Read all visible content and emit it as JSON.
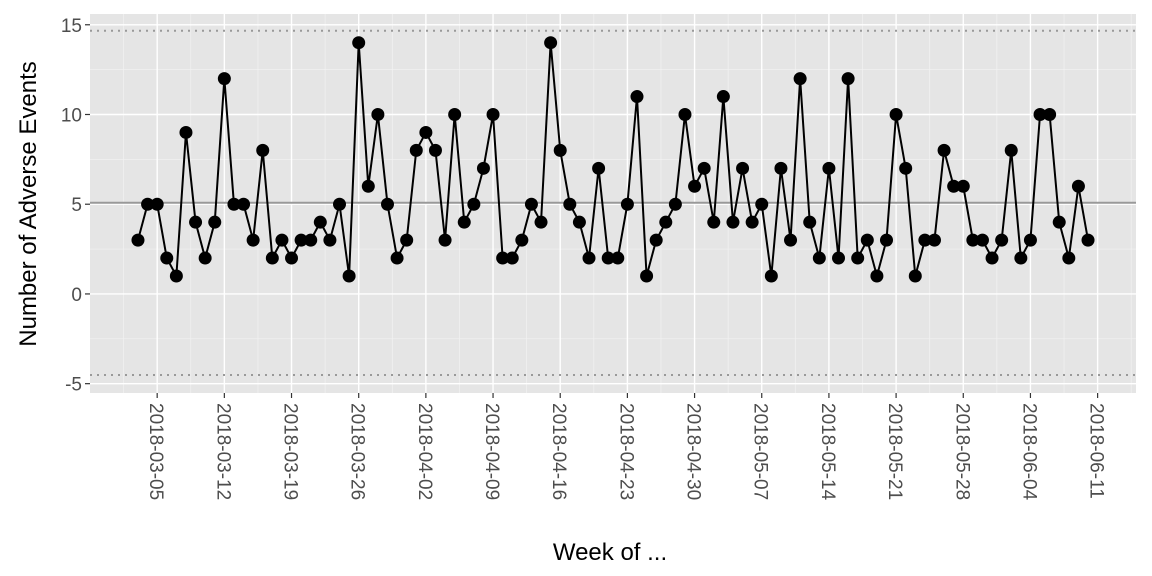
{
  "chart_data": {
    "type": "line",
    "x_label": "Week of ...",
    "y_label": "Number of Adverse Events",
    "x": [
      "2018-03-03",
      "2018-03-04",
      "2018-03-05",
      "2018-03-06",
      "2018-03-07",
      "2018-03-08",
      "2018-03-09",
      "2018-03-10",
      "2018-03-11",
      "2018-03-12",
      "2018-03-13",
      "2018-03-14",
      "2018-03-15",
      "2018-03-16",
      "2018-03-17",
      "2018-03-18",
      "2018-03-19",
      "2018-03-20",
      "2018-03-21",
      "2018-03-22",
      "2018-03-23",
      "2018-03-24",
      "2018-03-25",
      "2018-03-26",
      "2018-03-27",
      "2018-03-28",
      "2018-03-29",
      "2018-03-30",
      "2018-03-31",
      "2018-04-01",
      "2018-04-02",
      "2018-04-03",
      "2018-04-04",
      "2018-04-05",
      "2018-04-06",
      "2018-04-07",
      "2018-04-08",
      "2018-04-09",
      "2018-04-10",
      "2018-04-11",
      "2018-04-12",
      "2018-04-13",
      "2018-04-14",
      "2018-04-15",
      "2018-04-16",
      "2018-04-17",
      "2018-04-18",
      "2018-04-19",
      "2018-04-20",
      "2018-04-21",
      "2018-04-22",
      "2018-04-23",
      "2018-04-24",
      "2018-04-25",
      "2018-04-26",
      "2018-04-27",
      "2018-04-28",
      "2018-04-29",
      "2018-04-30",
      "2018-05-01",
      "2018-05-02",
      "2018-05-03",
      "2018-05-04",
      "2018-05-05",
      "2018-05-06",
      "2018-05-07",
      "2018-05-08",
      "2018-05-09",
      "2018-05-10",
      "2018-05-11",
      "2018-05-12",
      "2018-05-13",
      "2018-05-14",
      "2018-05-15",
      "2018-05-16",
      "2018-05-17",
      "2018-05-18",
      "2018-05-19",
      "2018-05-20",
      "2018-05-21",
      "2018-05-22",
      "2018-05-23",
      "2018-05-24",
      "2018-05-25",
      "2018-05-26",
      "2018-05-27",
      "2018-05-28",
      "2018-05-29",
      "2018-05-30",
      "2018-05-31",
      "2018-06-01",
      "2018-06-02",
      "2018-06-03",
      "2018-06-04",
      "2018-06-05",
      "2018-06-06",
      "2018-06-07",
      "2018-06-08",
      "2018-06-09",
      "2018-06-10"
    ],
    "values": [
      3,
      5,
      5,
      2,
      1,
      9,
      4,
      2,
      4,
      12,
      5,
      5,
      3,
      8,
      2,
      3,
      2,
      3,
      3,
      4,
      3,
      5,
      1,
      14,
      6,
      10,
      5,
      2,
      3,
      8,
      9,
      8,
      3,
      10,
      4,
      5,
      7,
      10,
      2,
      2,
      3,
      5,
      4,
      14,
      8,
      5,
      4,
      2,
      7,
      2,
      2,
      5,
      11,
      1,
      3,
      4,
      5,
      10,
      6,
      7,
      4,
      11,
      4,
      7,
      4,
      5,
      1,
      7,
      3,
      12,
      4,
      2,
      7,
      2,
      12,
      2,
      3,
      1,
      3,
      10,
      7,
      1,
      3,
      3,
      8,
      6,
      6,
      3,
      3,
      2,
      3,
      8,
      2,
      3,
      10,
      10,
      4,
      2,
      6,
      3
    ],
    "color": "#000000",
    "center_line": 5.08,
    "control_limits": [
      -4.52,
      14.67
    ],
    "xlim": [
      "2018-02-26",
      "2018-06-15"
    ],
    "xticks": [
      "2018-03-05",
      "2018-03-12",
      "2018-03-19",
      "2018-03-26",
      "2018-04-02",
      "2018-04-09",
      "2018-04-16",
      "2018-04-23",
      "2018-04-30",
      "2018-05-07",
      "2018-05-14",
      "2018-05-21",
      "2018-05-28",
      "2018-06-04",
      "2018-06-11"
    ],
    "ylim": [
      -5.52,
      15.6
    ],
    "yticks": [
      -5,
      0,
      5,
      10,
      15
    ],
    "grid": true
  }
}
